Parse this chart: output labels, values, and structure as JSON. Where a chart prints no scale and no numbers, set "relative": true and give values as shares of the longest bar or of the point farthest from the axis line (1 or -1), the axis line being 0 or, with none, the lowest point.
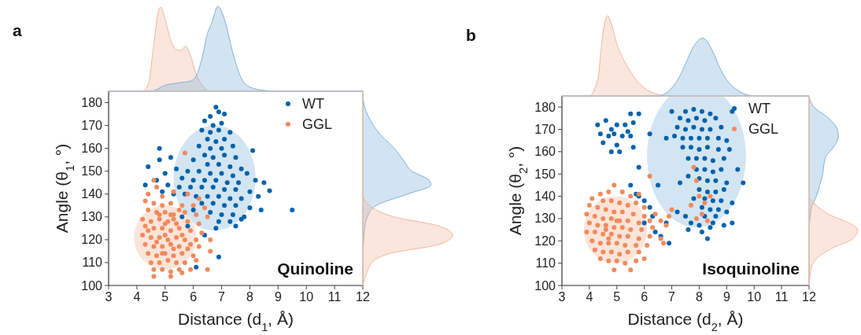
{
  "chart_data": [
    {
      "type": "scatter",
      "xlabel": "Distance (d$_{1}$, Å)",
      "ylabel": "Angle (θ$_{1}$, °)",
      "annotations": [
        "a",
        "Quinoline"
      ],
      "xlim": [
        3,
        12
      ],
      "ylim": [
        100,
        185
      ],
      "xticks": [
        3,
        4,
        5,
        6,
        7,
        8,
        9,
        10,
        11,
        12
      ],
      "yticks": [
        100,
        110,
        120,
        130,
        140,
        150,
        160,
        170,
        180
      ],
      "legend": "top right",
      "marker": "circle",
      "grid": false,
      "series": [
        {
          "name": "WT",
          "color": "#0063ad",
          "x": [
            6.8,
            6.9,
            6.6,
            7.1,
            6.4,
            6.7,
            7.0,
            6.3,
            6.6,
            6.9,
            7.3,
            6.5,
            6.8,
            7.1,
            6.2,
            6.6,
            7.0,
            7.4,
            8.1,
            6.4,
            6.7,
            7.1,
            7.5,
            6.0,
            6.5,
            6.9,
            7.3,
            7.7,
            5.4,
            5.8,
            6.2,
            6.6,
            7.0,
            7.4,
            7.9,
            5.0,
            4.4,
            4.8,
            4.8,
            5.2,
            5.6,
            6.0,
            6.4,
            6.8,
            7.2,
            7.6,
            8.2,
            8.5,
            4.7,
            5.1,
            5.5,
            5.9,
            6.3,
            6.7,
            7.1,
            7.5,
            8.0,
            8.7,
            4.3,
            4.9,
            5.3,
            5.7,
            6.1,
            6.5,
            6.9,
            7.3,
            7.7,
            8.3,
            6.3,
            6.7,
            7.1,
            7.5,
            8.0,
            8.4,
            9.5,
            6.6,
            7.0,
            7.4,
            7.8,
            6.9,
            7.3,
            7.7,
            6.8,
            7.5,
            6.4,
            6.9,
            6.1,
            5.8,
            5.6,
            6.0
          ],
          "values": [
            178,
            176,
            174,
            175,
            172,
            170,
            171,
            168,
            167,
            168,
            167,
            164,
            163,
            164,
            161,
            160,
            160,
            161,
            159,
            157,
            156,
            157,
            156,
            155,
            153,
            153,
            152,
            151,
            151,
            150,
            150,
            149,
            149,
            148,
            149,
            149,
            152,
            160,
            155,
            156,
            147,
            146,
            146,
            146,
            145,
            145,
            146,
            145,
            146,
            144,
            143,
            143,
            143,
            143,
            142,
            142,
            141,
            141.5,
            144,
            141,
            140,
            140,
            139,
            139,
            139,
            138,
            138,
            139,
            136,
            136,
            135,
            135,
            134,
            133,
            133,
            132,
            131,
            131,
            130,
            128,
            128,
            129,
            125,
            126,
            122,
            112.5,
            108,
            126,
            130,
            133
          ]
        },
        {
          "name": "GGL",
          "color": "#f08a5d",
          "x": [
            5.7,
            4.6,
            4.7,
            4.4,
            4.9,
            5.3,
            5.8,
            6.2,
            4.3,
            4.6,
            4.9,
            5.2,
            5.6,
            6.0,
            6.4,
            4.4,
            4.7,
            5.0,
            5.3,
            5.7,
            6.1,
            6.5,
            4.2,
            4.5,
            4.8,
            5.1,
            5.4,
            5.8,
            6.2,
            4.3,
            4.6,
            4.9,
            5.2,
            5.5,
            5.9,
            6.3,
            4.2,
            4.5,
            4.8,
            5.1,
            5.4,
            5.7,
            6.1,
            6.6,
            4.3,
            4.6,
            4.9,
            5.2,
            5.5,
            5.8,
            6.2,
            4.4,
            4.7,
            5.0,
            5.3,
            5.6,
            6.0,
            6.6,
            4.5,
            4.8,
            5.1,
            5.4,
            5.7,
            6.1,
            4.6,
            4.9,
            5.2,
            5.5,
            5.9,
            4.6,
            5.2,
            5.6,
            6.5,
            4.4,
            5.0,
            5.3,
            4.7,
            5.0,
            5.6,
            5.3,
            4.8,
            5.5,
            4.9,
            5.2,
            5.9
          ],
          "values": [
            158,
            146,
            143,
            140,
            139,
            141,
            140,
            138,
            137,
            136,
            135,
            136,
            135,
            135,
            134,
            133,
            132,
            132,
            131,
            132,
            131,
            130,
            129,
            128,
            129,
            128,
            127,
            128,
            127,
            126,
            125,
            125,
            124,
            125,
            124,
            123,
            122,
            121,
            121,
            120,
            121,
            120,
            120,
            120,
            118,
            117,
            117,
            118,
            117,
            116,
            117,
            114,
            113,
            114,
            113,
            114,
            113,
            115,
            110,
            110,
            111,
            110,
            110,
            111,
            107,
            107,
            106,
            107,
            107,
            104,
            104,
            105.5,
            107,
            124,
            127,
            129,
            119,
            122,
            122,
            116,
            131,
            133,
            114,
            131,
            118
          ]
        }
      ]
    },
    {
      "type": "area",
      "relative": true,
      "xlim": [
        3,
        12
      ],
      "tick_labels": false,
      "series": [
        {
          "color": "#f3b79d",
          "x": [
            3,
            4.2,
            4.4,
            4.6,
            4.75,
            4.84,
            5.0,
            5.2,
            5.4,
            5.55,
            5.73,
            5.9,
            6.1,
            6.3,
            6.6,
            7,
            12
          ],
          "values": [
            0,
            0,
            0.08,
            0.55,
            0.93,
            0.99,
            0.85,
            0.6,
            0.49,
            0.48,
            0.53,
            0.42,
            0.2,
            0.08,
            0,
            0,
            0
          ]
        },
        {
          "color": "#7fb2d6",
          "x": [
            3,
            4.5,
            5.0,
            5.5,
            5.9,
            6.1,
            6.3,
            6.5,
            6.65,
            6.87,
            7.1,
            7.4,
            7.7,
            8.0,
            8.5,
            9,
            12
          ],
          "values": [
            0,
            0,
            0.07,
            0.1,
            0.12,
            0.18,
            0.38,
            0.68,
            0.8,
            1,
            0.85,
            0.45,
            0.15,
            0.05,
            0.01,
            0,
            0
          ]
        }
      ]
    },
    {
      "type": "area",
      "relative": true,
      "orientation": "horizontal",
      "ylim": [
        100,
        185
      ],
      "tick_labels": false,
      "series": [
        {
          "color": "#7fb2d6",
          "x": [
            100,
            110,
            120,
            125,
            130,
            135,
            140,
            144,
            146,
            150,
            155,
            160,
            165,
            170,
            175,
            180,
            185
          ],
          "values": [
            0,
            0,
            0.01,
            0.02,
            0.05,
            0.15,
            0.5,
            0.76,
            0.74,
            0.55,
            0.45,
            0.35,
            0.22,
            0.12,
            0.05,
            0.01,
            0
          ]
        },
        {
          "color": "#f3b79d",
          "x": [
            100,
            103,
            106,
            110,
            114,
            118,
            122,
            126,
            130,
            133,
            136,
            140,
            145,
            185
          ],
          "values": [
            0,
            0.02,
            0.05,
            0.1,
            0.3,
            0.85,
            1,
            0.85,
            0.35,
            0.15,
            0.05,
            0,
            0,
            0
          ]
        }
      ]
    },
    {
      "type": "scatter",
      "xlabel": "Distance (d$_{2}$, Å)",
      "ylabel": "Angle (θ$_{2}$, °)",
      "annotations": [
        "b",
        "Isoquinoline"
      ],
      "xlim": [
        3,
        12
      ],
      "ylim": [
        100,
        185
      ],
      "xticks": [
        3,
        4,
        5,
        6,
        7,
        8,
        9,
        10,
        11,
        12
      ],
      "yticks": [
        100,
        110,
        120,
        130,
        140,
        150,
        160,
        170,
        180
      ],
      "legend": "top right",
      "marker": "circle",
      "grid": false,
      "series": [
        {
          "name": "WT",
          "color": "#0063ad",
          "x": [
            4.3,
            4.4,
            4.5,
            4.6,
            4.7,
            4.8,
            4.8,
            4.9,
            5.0,
            5.0,
            5.1,
            5.2,
            5.3,
            5.4,
            5.5,
            5.5,
            5.6,
            5.6,
            5.8,
            5.8,
            5.5,
            5.7,
            5.8,
            6.0,
            6.2,
            6.3,
            6.0,
            6.4,
            6.6,
            6.8,
            6.5,
            6.9,
            7.2,
            7.3,
            6.8,
            6.2,
            7.0,
            7.5,
            7.8,
            8.1,
            8.4,
            7.3,
            7.6,
            7.9,
            8.2,
            8.6,
            9.2,
            7.2,
            7.5,
            7.8,
            8.1,
            8.4,
            8.8,
            7.1,
            7.4,
            7.7,
            8.0,
            8.3,
            8.7,
            9.0,
            7.4,
            7.7,
            8.0,
            8.3,
            8.7,
            9.1,
            7.6,
            7.9,
            8.2,
            8.5,
            8.9,
            7.9,
            8.2,
            8.5,
            8.8,
            9.4,
            7.6,
            8.0,
            8.3,
            8.6,
            9.0,
            9.6,
            8.0,
            8.3,
            8.6,
            8.9,
            7.8,
            8.2,
            8.5,
            8.8,
            9.2,
            8.1,
            8.4,
            8.7,
            9.0,
            7.5,
            8.2,
            8.6,
            7.7,
            8.0,
            8.5,
            9.2,
            7.6,
            8.1,
            8.4,
            8.3,
            8.9
          ],
          "values": [
            172,
            168,
            164,
            174,
            167,
            170,
            160,
            168,
            163,
            172,
            160,
            167,
            172,
            169,
            177,
            167,
            162,
            173,
            177,
            153,
            145,
            141,
            140,
            138,
            135,
            131,
            128,
            124,
            122,
            128,
            145,
            119,
            133,
            146,
            166,
            168,
            178,
            178,
            179,
            178,
            177,
            175,
            174,
            175,
            174,
            175,
            178,
            171,
            170,
            171,
            170,
            170,
            171,
            167,
            166,
            166,
            166,
            166,
            166,
            165,
            162,
            162,
            161,
            162,
            161,
            161,
            157,
            157,
            157,
            156,
            157,
            152,
            152,
            151,
            152,
            152,
            149,
            148,
            147,
            147,
            146,
            146,
            143,
            142,
            142,
            143,
            139,
            139,
            138,
            138,
            137,
            135,
            134,
            134,
            133,
            131,
            131,
            131,
            128,
            127,
            128,
            128,
            125,
            124,
            126,
            121,
            127
          ]
        },
        {
          "name": "GGL",
          "color": "#f08a5d",
          "x": [
            4.9,
            4.7,
            4.4,
            5.2,
            5.5,
            5.8,
            6.2,
            4.1,
            4.5,
            4.8,
            5.1,
            5.4,
            5.7,
            6.0,
            4.0,
            4.3,
            4.6,
            4.9,
            5.2,
            5.6,
            6.0,
            6.4,
            3.9,
            4.2,
            4.5,
            4.8,
            5.1,
            5.4,
            5.8,
            6.2,
            6.6,
            4.0,
            4.3,
            4.6,
            4.9,
            5.2,
            5.5,
            5.9,
            6.3,
            6.8,
            3.9,
            4.2,
            4.5,
            4.8,
            5.1,
            5.4,
            5.8,
            6.2,
            6.6,
            4.1,
            4.4,
            4.7,
            5.0,
            5.3,
            5.7,
            6.1,
            6.7,
            4.2,
            4.5,
            4.8,
            5.1,
            5.4,
            5.8,
            4.4,
            4.7,
            5.0,
            5.3,
            5.7,
            6.0,
            4.9,
            5.5,
            7.0,
            7.8,
            7.9,
            8.0,
            7.7,
            8.2,
            8.1,
            8.3,
            8.4,
            7.9,
            6.9,
            4.6,
            5.0,
            4.7
          ],
          "values": [
            145,
            142,
            141,
            142,
            140,
            141,
            149,
            139,
            138,
            138,
            137,
            136,
            137,
            135,
            136,
            135,
            134,
            133,
            133,
            132,
            131,
            132,
            132,
            131,
            130,
            130,
            129,
            129,
            128,
            129,
            129,
            128,
            127,
            127,
            126,
            126,
            125,
            125,
            126,
            127,
            124,
            124,
            123,
            123,
            122,
            122,
            121,
            122,
            121,
            120,
            119,
            119,
            119,
            118,
            118,
            118,
            119,
            116,
            115,
            115,
            114,
            115,
            115,
            112,
            111,
            111,
            110,
            111,
            112,
            107,
            107,
            134,
            153,
            147,
            140,
            136,
            137,
            132,
            129,
            140,
            130,
            131,
            125,
            129,
            121
          ]
        }
      ]
    },
    {
      "type": "area",
      "relative": true,
      "xlim": [
        3,
        12
      ],
      "tick_labels": false,
      "series": [
        {
          "color": "#f3b79d",
          "x": [
            3,
            4.0,
            4.3,
            4.5,
            4.66,
            4.8,
            5.0,
            5.25,
            5.5,
            5.75,
            6.0,
            6.5,
            7,
            12
          ],
          "values": [
            0,
            0,
            0.2,
            0.8,
            1,
            0.9,
            0.65,
            0.45,
            0.3,
            0.18,
            0.1,
            0.02,
            0,
            0
          ]
        },
        {
          "color": "#7fb2d6",
          "x": [
            3,
            6.5,
            7.0,
            7.25,
            7.5,
            7.8,
            8.13,
            8.5,
            8.75,
            9.0,
            9.5,
            10,
            12
          ],
          "values": [
            0,
            0,
            0.1,
            0.22,
            0.4,
            0.62,
            0.72,
            0.55,
            0.35,
            0.2,
            0.05,
            0,
            0
          ]
        }
      ]
    },
    {
      "type": "area",
      "relative": true,
      "orientation": "horizontal",
      "ylim": [
        100,
        185
      ],
      "tick_labels": false,
      "series": [
        {
          "color": "#7fb2d6",
          "x": [
            100,
            125,
            130,
            135,
            140,
            145,
            150,
            155,
            158,
            162,
            167,
            170,
            175,
            180,
            185
          ],
          "values": [
            0,
            0,
            0.02,
            0.05,
            0.15,
            0.22,
            0.28,
            0.31,
            0.35,
            0.5,
            0.6,
            0.58,
            0.4,
            0.1,
            0
          ]
        },
        {
          "color": "#f3b79d",
          "x": [
            100,
            104,
            108,
            112,
            117,
            121,
            125,
            127,
            132,
            137,
            140,
            145,
            185
          ],
          "values": [
            0,
            0.02,
            0.05,
            0.15,
            0.5,
            0.9,
            1,
            0.9,
            0.4,
            0.1,
            0,
            0,
            0
          ]
        }
      ]
    }
  ]
}
